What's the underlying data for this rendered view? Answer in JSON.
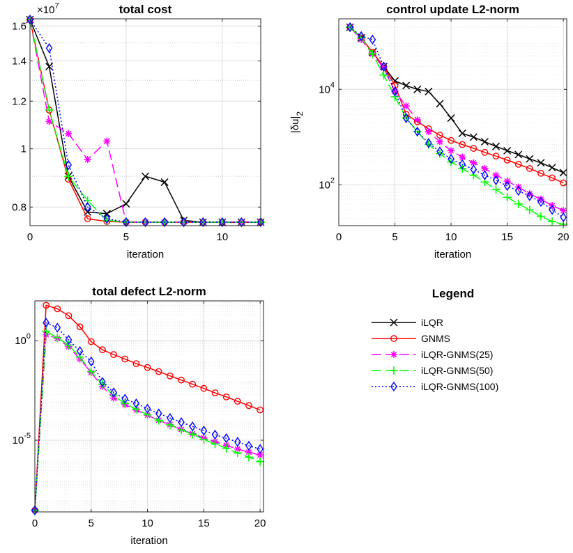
{
  "chart_data": [
    {
      "id": "cost",
      "type": "line",
      "title": "total cost",
      "xlabel": "iteration",
      "ylabel": "",
      "xlim": [
        0,
        12
      ],
      "ylim": [
        0.745,
        1.645
      ],
      "yscale": "log",
      "xticks": [
        0,
        5,
        10
      ],
      "yticks": [
        0.8,
        1,
        1.2,
        1.4,
        1.6
      ],
      "ytick_labels": [
        "0.8",
        "1",
        "1.2",
        "1.4",
        "1.6"
      ],
      "exponent_label": "×10",
      "exponent_power": "7",
      "grid": true,
      "series": [
        {
          "name": "iLQR",
          "x": [
            0,
            1,
            2,
            3,
            4,
            5,
            6,
            7,
            8,
            9,
            10,
            11,
            12
          ],
          "y": [
            1.64,
            1.37,
            0.9,
            0.785,
            0.78,
            0.81,
            0.9,
            0.88,
            0.76,
            0.755,
            0.755,
            0.755,
            0.755
          ]
        },
        {
          "name": "GNMS",
          "x": [
            0,
            1,
            2,
            3,
            4,
            5,
            6,
            7,
            8,
            9,
            10,
            11,
            12
          ],
          "y": [
            1.64,
            1.16,
            0.89,
            0.765,
            0.757,
            0.755,
            0.755,
            0.755,
            0.755,
            0.755,
            0.755,
            0.755,
            0.755
          ]
        },
        {
          "name": "iLQR-GNMS(25)",
          "x": [
            0,
            1,
            2,
            3,
            4,
            5,
            6,
            7,
            8,
            9,
            10,
            11,
            12
          ],
          "y": [
            1.64,
            1.11,
            1.06,
            0.96,
            1.03,
            0.755,
            0.755,
            0.755,
            0.755,
            0.755,
            0.755,
            0.755,
            0.755
          ]
        },
        {
          "name": "iLQR-GNMS(50)",
          "x": [
            0,
            1,
            2,
            3,
            4,
            5,
            6,
            7,
            8,
            9,
            10,
            11,
            12
          ],
          "y": [
            1.64,
            1.16,
            0.9,
            0.82,
            0.76,
            0.755,
            0.755,
            0.755,
            0.755,
            0.755,
            0.755,
            0.755,
            0.755
          ]
        },
        {
          "name": "iLQR-GNMS(100)",
          "x": [
            0,
            1,
            2,
            3,
            4,
            5,
            6,
            7,
            8,
            9,
            10,
            11,
            12
          ],
          "y": [
            1.64,
            1.47,
            0.94,
            0.8,
            0.765,
            0.755,
            0.755,
            0.755,
            0.755,
            0.755,
            0.755,
            0.755,
            0.755
          ]
        }
      ]
    },
    {
      "id": "control",
      "type": "line",
      "title": "control update L2-norm",
      "xlabel": "iteration",
      "ylabel": "|δu|",
      "ylabel_sub": "2",
      "xlim": [
        0,
        20.3
      ],
      "ylim": [
        14,
        300000
      ],
      "yscale": "log",
      "xticks": [
        0,
        5,
        10,
        15,
        20
      ],
      "yticks": [
        100,
        10000
      ],
      "ytick_base": "10",
      "ytick_exps": [
        "2",
        "4"
      ],
      "grid": true,
      "series": [
        {
          "name": "iLQR",
          "x": [
            1,
            2,
            3,
            4,
            5,
            6,
            7,
            8,
            9,
            10,
            11,
            12,
            13,
            14,
            15,
            16,
            17,
            18,
            19,
            20
          ],
          "y": [
            200000,
            120000,
            60000,
            30000,
            15000,
            12000,
            10000,
            9000,
            5000,
            2500,
            1200,
            1000,
            800,
            640,
            520,
            430,
            350,
            290,
            230,
            180
          ]
        },
        {
          "name": "GNMS",
          "x": [
            1,
            2,
            3,
            4,
            5,
            6,
            7,
            8,
            9,
            10,
            11,
            12,
            13,
            14,
            15,
            16,
            17,
            18,
            19,
            20
          ],
          "y": [
            200000,
            120000,
            60000,
            30000,
            12000,
            3000,
            2100,
            1500,
            1100,
            850,
            700,
            580,
            480,
            400,
            330,
            270,
            220,
            175,
            140,
            110
          ]
        },
        {
          "name": "iLQR-GNMS(25)",
          "x": [
            1,
            2,
            3,
            4,
            5,
            6,
            7,
            8,
            9,
            10,
            11,
            12,
            13,
            14,
            15,
            16,
            17,
            18,
            19,
            20
          ],
          "y": [
            200000,
            110000,
            55000,
            28000,
            9000,
            4500,
            2300,
            1300,
            800,
            520,
            380,
            290,
            220,
            160,
            120,
            90,
            65,
            50,
            37,
            29
          ]
        },
        {
          "name": "iLQR-GNMS(50)",
          "x": [
            1,
            2,
            3,
            4,
            5,
            6,
            7,
            8,
            9,
            10,
            11,
            12,
            13,
            14,
            15,
            16,
            17,
            18,
            19,
            20
          ],
          "y": [
            200000,
            120000,
            55000,
            20000,
            7000,
            2500,
            1300,
            700,
            450,
            300,
            220,
            160,
            115,
            80,
            55,
            40,
            30,
            22,
            17,
            15
          ]
        },
        {
          "name": "iLQR-GNMS(100)",
          "x": [
            1,
            2,
            3,
            4,
            5,
            6,
            7,
            8,
            9,
            10,
            11,
            12,
            13,
            14,
            15,
            16,
            17,
            18,
            19,
            20
          ],
          "y": [
            200000,
            130000,
            110000,
            30000,
            9000,
            2500,
            1300,
            750,
            500,
            350,
            270,
            210,
            160,
            125,
            95,
            75,
            58,
            44,
            30,
            21
          ]
        }
      ]
    },
    {
      "id": "defect",
      "type": "line",
      "title": "total defect L2-norm",
      "xlabel": "iteration",
      "ylabel": "",
      "xlim": [
        0,
        20.3
      ],
      "ylim": [
        2.5e-09,
        100
      ],
      "yscale": "log",
      "xticks": [
        0,
        5,
        10,
        15,
        20
      ],
      "yticks": [
        1e-05,
        1
      ],
      "ytick_base": "10",
      "ytick_exps": [
        "-5",
        "0"
      ],
      "grid": true,
      "series": [
        {
          "name": "iLQR",
          "x": [],
          "y": []
        },
        {
          "name": "GNMS",
          "x": [
            0,
            1,
            2,
            3,
            4,
            5,
            6,
            7,
            8,
            9,
            10,
            11,
            12,
            13,
            14,
            15,
            16,
            17,
            18,
            19,
            20
          ],
          "y": [
            3e-09,
            60,
            40,
            18,
            5,
            0.9,
            0.35,
            0.2,
            0.12,
            0.07,
            0.045,
            0.028,
            0.017,
            0.0105,
            0.0065,
            0.004,
            0.0024,
            0.0015,
            0.0009,
            0.00055,
            0.00033
          ]
        },
        {
          "name": "iLQR-GNMS(25)",
          "x": [
            0,
            1,
            2,
            3,
            4,
            5,
            6,
            7,
            8,
            9,
            10,
            11,
            12,
            13,
            14,
            15,
            16,
            17,
            18,
            19,
            20
          ],
          "y": [
            3e-09,
            2,
            1.3,
            0.5,
            0.12,
            0.025,
            0.005,
            0.0013,
            0.0006,
            0.00033,
            0.00018,
            0.0001,
            6e-05,
            3.5e-05,
            2.1e-05,
            1.3e-05,
            8.5e-06,
            5.5e-06,
            3.6e-06,
            2.5e-06,
            1.8e-06
          ]
        },
        {
          "name": "iLQR-GNMS(50)",
          "x": [
            0,
            1,
            2,
            3,
            4,
            5,
            6,
            7,
            8,
            9,
            10,
            11,
            12,
            13,
            14,
            15,
            16,
            17,
            18,
            19,
            20
          ],
          "y": [
            3e-09,
            3,
            1.4,
            0.6,
            0.15,
            0.028,
            0.0065,
            0.0017,
            0.0007,
            0.00036,
            0.00019,
            0.0001,
            5.8e-05,
            3.3e-05,
            2e-05,
            1.1e-05,
            6.5e-06,
            3.9e-06,
            2.3e-06,
            1.4e-06,
            8.5e-07
          ]
        },
        {
          "name": "iLQR-GNMS(100)",
          "x": [
            0,
            1,
            2,
            3,
            4,
            5,
            6,
            7,
            8,
            9,
            10,
            11,
            12,
            13,
            14,
            15,
            16,
            17,
            18,
            19,
            20
          ],
          "y": [
            3e-09,
            8,
            4.5,
            1.1,
            0.3,
            0.09,
            0.0085,
            0.0025,
            0.0012,
            0.0007,
            0.00038,
            0.00022,
            0.00013,
            8e-05,
            4.9e-05,
            3e-05,
            1.9e-05,
            1.25e-05,
            8.2e-06,
            5.2e-06,
            3.6e-06
          ]
        }
      ]
    }
  ],
  "legend": {
    "title": "Legend",
    "entries": [
      "iLQR",
      "GNMS",
      "iLQR-GNMS(25)",
      "iLQR-GNMS(50)",
      "iLQR-GNMS(100)"
    ]
  },
  "styles": {
    "iLQR": {
      "color": "#000000",
      "dash": "",
      "marker": "x"
    },
    "GNMS": {
      "color": "#ff0000",
      "dash": "",
      "marker": "o"
    },
    "iLQR-GNMS(25)": {
      "color": "#ff00ff",
      "dash": "14 6",
      "marker": "*"
    },
    "iLQR-GNMS(50)": {
      "color": "#00ff00",
      "dash": "14 6",
      "marker": "+"
    },
    "iLQR-GNMS(100)": {
      "color": "#0000ff",
      "dash": "2 3",
      "marker": "d"
    }
  }
}
